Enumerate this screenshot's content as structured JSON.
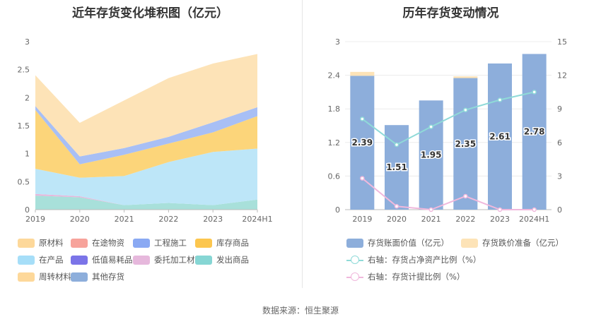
{
  "left": {
    "title": "近年存货变化堆积图（亿元）"
  },
  "right": {
    "title": "历年存货变动情况"
  },
  "source": "数据来源：恒生聚源",
  "chart_data": [
    {
      "type": "area",
      "stacked": true,
      "title": "近年存货变化堆积图（亿元）",
      "categories": [
        "2019",
        "2020",
        "2021",
        "2022",
        "2023",
        "2024H1"
      ],
      "ylim": [
        0,
        3
      ],
      "yticks": [
        "0",
        "0.5",
        "1",
        "1.5",
        "2",
        "2.5",
        "3"
      ],
      "grid": false,
      "legend_position": "bottom",
      "legend": [
        "原材料",
        "在途物资",
        "工程施工",
        "库存商品",
        "在产品",
        "低值易耗品",
        "委托加工材料",
        "发出商品",
        "周转材料",
        "其他存货"
      ],
      "series": [
        {
          "name": "发出商品",
          "color": "#a8e0da",
          "values": [
            0.25,
            0.22,
            0.08,
            0.12,
            0.08,
            0.18
          ]
        },
        {
          "name": "委托加工材料",
          "color": "#e6b8dc",
          "values": [
            0.03,
            0.02,
            0.0,
            0.0,
            0.0,
            0.0
          ]
        },
        {
          "name": "在产品",
          "color": "#bde6f8",
          "values": [
            0.45,
            0.33,
            0.52,
            0.73,
            0.95,
            0.91
          ]
        },
        {
          "name": "库存商品",
          "color": "#fcd57a",
          "values": [
            1.05,
            0.24,
            0.38,
            0.33,
            0.35,
            0.58
          ]
        },
        {
          "name": "工程施工",
          "color": "#a8bff5",
          "values": [
            0.07,
            0.14,
            0.12,
            0.12,
            0.18,
            0.16
          ]
        },
        {
          "name": "原材料",
          "color": "#fde3b7",
          "values": [
            0.55,
            0.6,
            0.85,
            1.05,
            1.05,
            0.95
          ]
        }
      ]
    },
    {
      "type": "bar",
      "title": "历年存货变动情况",
      "categories": [
        "2019",
        "2020",
        "2021",
        "2022",
        "2023",
        "2024H1"
      ],
      "ylim": [
        0,
        3
      ],
      "yticks": [
        "0",
        "0.6",
        "1.2",
        "1.8",
        "2.4",
        "3"
      ],
      "y2lim": [
        0,
        15
      ],
      "y2ticks": [
        "0",
        "3",
        "6",
        "9",
        "12",
        "15"
      ],
      "grid": true,
      "legend_position": "bottom",
      "series": [
        {
          "name": "存货账面价值（亿元）",
          "type": "bar",
          "axis": "left",
          "color": "#8daedb",
          "values": [
            2.39,
            1.51,
            1.95,
            2.35,
            2.61,
            2.78
          ],
          "labels": [
            "2.39",
            "1.51",
            "1.95",
            "2.35",
            "2.61",
            "2.78"
          ]
        },
        {
          "name": "存货跌价准备（亿元）",
          "type": "bar-stack",
          "axis": "left",
          "color": "#fde3b7",
          "values": [
            0.07,
            0.0,
            0.0,
            0.03,
            0.0,
            0.0
          ]
        },
        {
          "name": "右轴：存货占净资产比例（%）",
          "type": "line",
          "axis": "right",
          "color": "#8fdad8",
          "values": [
            8.1,
            5.8,
            7.4,
            8.9,
            9.8,
            10.5
          ]
        },
        {
          "name": "右轴：存货计提比例（%）",
          "type": "line",
          "axis": "right",
          "color": "#f0b8dc",
          "values": [
            2.8,
            0.3,
            0.0,
            1.2,
            0.0,
            0.0
          ]
        }
      ]
    }
  ]
}
